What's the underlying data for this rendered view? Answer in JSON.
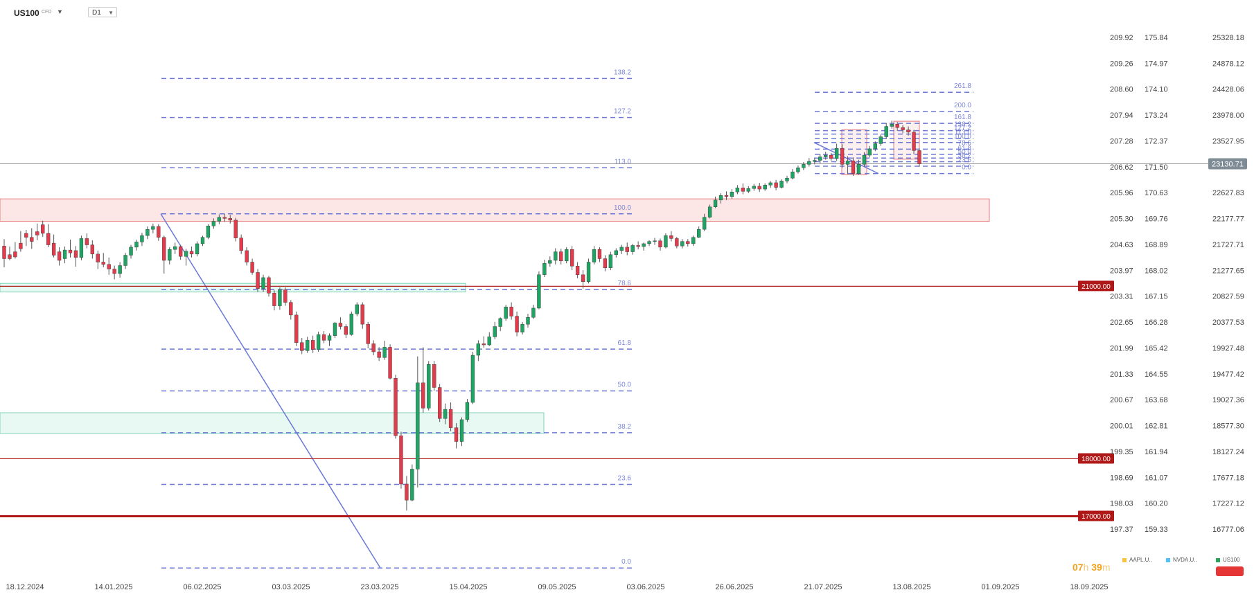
{
  "header": {
    "symbol": "US100",
    "symbol_sub": "CFD",
    "timeframe": "D1"
  },
  "timer": {
    "hours": "07",
    "h_unit": "h",
    "minutes": "39",
    "m_unit": "m"
  },
  "legend": [
    {
      "label": "AAPL.U..",
      "color": "#f5c542"
    },
    {
      "label": "NVDA.U..",
      "color": "#4fc3f7"
    },
    {
      "label": "US100",
      "color": "#26a65b"
    }
  ],
  "chart_data": {
    "type": "candlestick",
    "symbol": "US100",
    "timeframe": "D1",
    "current_price": "23130.71",
    "x_labels": [
      "18.12.2024",
      "14.01.2025",
      "06.02.2025",
      "03.03.2025",
      "23.03.2025",
      "15.04.2025",
      "09.05.2025",
      "03.06.2025",
      "26.06.2025",
      "21.07.2025",
      "13.08.2025",
      "01.09.2025",
      "18.09.2025"
    ],
    "axis_price": [
      "25328.18",
      "24878.12",
      "24428.06",
      "23978.00",
      "23527.95",
      "23130.71",
      "22627.83",
      "22177.77",
      "21727.71",
      "21277.65",
      "20827.59",
      "20377.53",
      "19927.48",
      "19477.42",
      "19027.36",
      "18577.30",
      "18127.24",
      "17677.18",
      "17227.12",
      "16777.06"
    ],
    "axis_nvda": [
      "175.84",
      "174.97",
      "174.10",
      "173.24",
      "172.37",
      "171.50",
      "170.63",
      "169.76",
      "168.89",
      "168.02",
      "167.15",
      "166.28",
      "165.42",
      "164.55",
      "163.68",
      "162.81",
      "161.94",
      "161.07",
      "160.20",
      "159.33"
    ],
    "axis_aapl": [
      "209.92",
      "209.26",
      "208.60",
      "207.94",
      "207.28",
      "206.62",
      "205.96",
      "205.30",
      "204.63",
      "203.97",
      "203.31",
      "202.65",
      "201.99",
      "201.33",
      "200.67",
      "200.01",
      "199.35",
      "198.69",
      "198.03",
      "197.37"
    ],
    "price_range": [
      16777.06,
      25328.18
    ],
    "horizontal_levels": [
      {
        "price": 21000,
        "label": "21000.00",
        "weight": "thin"
      },
      {
        "price": 18000,
        "label": "18000.00",
        "weight": "thin"
      },
      {
        "price": 17000,
        "label": "17000.00",
        "weight": "thick"
      }
    ],
    "fibonacci_main": {
      "low": 16100,
      "high": 22260,
      "levels": [
        "0.0",
        "23.6",
        "38.2",
        "50.0",
        "61.8",
        "78.6",
        "100.0",
        "113.0",
        "127.2",
        "138.2"
      ]
    },
    "fibonacci_small": {
      "low": 22960,
      "high": 23500,
      "levels": [
        "0.0",
        "23.6",
        "38.2",
        "50.0",
        "61.8",
        "78.6",
        "100.0",
        "113.0",
        "127.2",
        "138.2",
        "161.8",
        "200.0",
        "261.8"
      ]
    },
    "zones": [
      {
        "type": "resistance",
        "from": 22130,
        "to": 22520
      },
      {
        "type": "support",
        "from": 20900,
        "to": 21050
      },
      {
        "type": "support",
        "from": 18440,
        "to": 18800
      }
    ],
    "candles": [
      [
        21700,
        21820,
        21480,
        21330
      ],
      [
        21550,
        21690,
        21480,
        21450
      ],
      [
        21600,
        21770,
        21510,
        21480
      ],
      [
        21750,
        21960,
        21650,
        21600
      ],
      [
        21920,
        21980,
        21850,
        21700
      ],
      [
        21850,
        22010,
        21780,
        21650
      ],
      [
        21950,
        22090,
        21890,
        21800
      ],
      [
        22070,
        22140,
        21920,
        21860
      ],
      [
        21920,
        22080,
        21720,
        21680
      ],
      [
        21750,
        21900,
        21540,
        21500
      ],
      [
        21600,
        21680,
        21450,
        21360
      ],
      [
        21480,
        21690,
        21630,
        21400
      ],
      [
        21630,
        21810,
        21580,
        21500
      ],
      [
        21620,
        21700,
        21500,
        21340
      ],
      [
        21500,
        21880,
        21830,
        21450
      ],
      [
        21830,
        21920,
        21720,
        21660
      ],
      [
        21720,
        21800,
        21560,
        21480
      ],
      [
        21560,
        21620,
        21420,
        21300
      ],
      [
        21420,
        21580,
        21380,
        21330
      ],
      [
        21380,
        21500,
        21300,
        21200
      ],
      [
        21300,
        21360,
        21220,
        21120
      ],
      [
        21220,
        21420,
        21360,
        21150
      ],
      [
        21360,
        21580,
        21540,
        21300
      ],
      [
        21540,
        21720,
        21680,
        21480
      ],
      [
        21680,
        21810,
        21770,
        21620
      ],
      [
        21770,
        21930,
        21880,
        21700
      ],
      [
        21880,
        22040,
        21990,
        21820
      ],
      [
        21990,
        22090,
        22040,
        21920
      ],
      [
        22040,
        22080,
        21850,
        21790
      ],
      [
        21850,
        21880,
        21450,
        21220
      ],
      [
        21450,
        21680,
        21640,
        21380
      ],
      [
        21640,
        21760,
        21690,
        21560
      ],
      [
        21690,
        21720,
        21520,
        21460
      ],
      [
        21520,
        21650,
        21610,
        21360
      ],
      [
        21610,
        21690,
        21560,
        21500
      ],
      [
        21560,
        21780,
        21740,
        21520
      ],
      [
        21740,
        21880,
        21850,
        21700
      ],
      [
        21850,
        22080,
        22050,
        21820
      ],
      [
        22050,
        22180,
        22130,
        22000
      ],
      [
        22130,
        22250,
        22200,
        22080
      ],
      [
        22200,
        22260,
        22180,
        22120
      ],
      [
        22180,
        22240,
        22150,
        22090
      ],
      [
        22150,
        22190,
        21840,
        21780
      ],
      [
        21840,
        21900,
        21620,
        21560
      ],
      [
        21620,
        21680,
        21420,
        21360
      ],
      [
        21420,
        21480,
        21240,
        21200
      ],
      [
        21240,
        21300,
        20960,
        20900
      ],
      [
        20960,
        21200,
        21150,
        20900
      ],
      [
        21150,
        21180,
        20880,
        20820
      ],
      [
        20880,
        20930,
        20660,
        20580
      ],
      [
        20660,
        20980,
        20940,
        20590
      ],
      [
        20940,
        20980,
        20720,
        20660
      ],
      [
        20720,
        20760,
        20500,
        20420
      ],
      [
        20500,
        20560,
        20020,
        19960
      ],
      [
        20020,
        20100,
        19880,
        19820
      ],
      [
        19880,
        20120,
        20060,
        19840
      ],
      [
        20060,
        20140,
        19900,
        19840
      ],
      [
        19900,
        20210,
        20160,
        19860
      ],
      [
        20160,
        20220,
        20060,
        20010
      ],
      [
        20060,
        20180,
        20140,
        19960
      ],
      [
        20140,
        20380,
        20360,
        20100
      ],
      [
        20360,
        20460,
        20300,
        20250
      ],
      [
        20300,
        20340,
        20160,
        20100
      ],
      [
        20160,
        20560,
        20520,
        20140
      ],
      [
        20520,
        20720,
        20680,
        20480
      ],
      [
        20680,
        20720,
        20340,
        20260
      ],
      [
        20340,
        20380,
        20000,
        19920
      ],
      [
        20000,
        20060,
        19860,
        19800
      ],
      [
        19860,
        19940,
        19760,
        19700
      ],
      [
        19760,
        20050,
        19940,
        19720
      ],
      [
        19940,
        19990,
        19400,
        19380
      ],
      [
        19400,
        19460,
        18400,
        18350
      ],
      [
        18400,
        18470,
        17560,
        17480
      ],
      [
        17560,
        17700,
        17280,
        17100
      ],
      [
        17280,
        17900,
        17820,
        17260
      ],
      [
        17820,
        19780,
        19320,
        17500
      ],
      [
        19320,
        19940,
        18880,
        18800
      ],
      [
        18880,
        19700,
        19640,
        18840
      ],
      [
        19640,
        19700,
        19240,
        19180
      ],
      [
        19240,
        19300,
        18700,
        18640
      ],
      [
        18700,
        18960,
        18860,
        18600
      ],
      [
        18860,
        18980,
        18540,
        18480
      ],
      [
        18540,
        18620,
        18300,
        18180
      ],
      [
        18300,
        18720,
        18680,
        18220
      ],
      [
        18680,
        19040,
        18980,
        18640
      ],
      [
        18980,
        19860,
        19800,
        18950
      ],
      [
        19800,
        20060,
        20000,
        19700
      ],
      [
        20000,
        20130,
        19980,
        19930
      ],
      [
        19980,
        20200,
        20120,
        19960
      ],
      [
        20120,
        20380,
        20300,
        20080
      ],
      [
        20300,
        20460,
        20440,
        20220
      ],
      [
        20440,
        20680,
        20640,
        20400
      ],
      [
        20640,
        20720,
        20480,
        20420
      ],
      [
        20480,
        20560,
        20200,
        20130
      ],
      [
        20200,
        20380,
        20340,
        20160
      ],
      [
        20340,
        20520,
        20460,
        20280
      ],
      [
        20460,
        20680,
        20620,
        20430
      ],
      [
        20620,
        21260,
        21200,
        20600
      ],
      [
        21200,
        21460,
        21400,
        21160
      ],
      [
        21400,
        21520,
        21450,
        21340
      ],
      [
        21450,
        21660,
        21600,
        21380
      ],
      [
        21600,
        21650,
        21440,
        21380
      ],
      [
        21440,
        21680,
        21640,
        21400
      ],
      [
        21640,
        21700,
        21350,
        21280
      ],
      [
        21350,
        21420,
        21200,
        21140
      ],
      [
        21200,
        21280,
        21080,
        20960
      ],
      [
        21080,
        21480,
        21420,
        21050
      ],
      [
        21420,
        21700,
        21640,
        21380
      ],
      [
        21640,
        21680,
        21480,
        21420
      ],
      [
        21480,
        21540,
        21320,
        21260
      ],
      [
        21320,
        21600,
        21550,
        21280
      ],
      [
        21550,
        21660,
        21620,
        21500
      ],
      [
        21620,
        21720,
        21680,
        21560
      ],
      [
        21680,
        21760,
        21600,
        21540
      ],
      [
        21600,
        21740,
        21710,
        21550
      ],
      [
        21710,
        21780,
        21690,
        21640
      ],
      [
        21690,
        21760,
        21740,
        21620
      ],
      [
        21740,
        21800,
        21780,
        21700
      ],
      [
        21780,
        21840,
        21790,
        21720
      ],
      [
        21790,
        21830,
        21680,
        21620
      ],
      [
        21680,
        21920,
        21880,
        21660
      ],
      [
        21880,
        21960,
        21830,
        21780
      ],
      [
        21830,
        21860,
        21700,
        21660
      ],
      [
        21700,
        21820,
        21780,
        21660
      ],
      [
        21780,
        21820,
        21740,
        21690
      ],
      [
        21740,
        21880,
        21850,
        21700
      ],
      [
        21850,
        22040,
        21990,
        21840
      ],
      [
        21990,
        22260,
        22200,
        21960
      ],
      [
        22200,
        22420,
        22380,
        22180
      ],
      [
        22380,
        22560,
        22500,
        22360
      ],
      [
        22500,
        22620,
        22580,
        22440
      ],
      [
        22580,
        22650,
        22560,
        22500
      ],
      [
        22560,
        22690,
        22640,
        22520
      ],
      [
        22640,
        22760,
        22710,
        22600
      ],
      [
        22710,
        22790,
        22650,
        22600
      ],
      [
        22650,
        22740,
        22700,
        22620
      ],
      [
        22700,
        22780,
        22740,
        22660
      ],
      [
        22740,
        22800,
        22690,
        22640
      ],
      [
        22690,
        22790,
        22760,
        22660
      ],
      [
        22760,
        22830,
        22800,
        22710
      ],
      [
        22800,
        22850,
        22720,
        22670
      ],
      [
        22720,
        22860,
        22830,
        22700
      ],
      [
        22830,
        22920,
        22880,
        22790
      ],
      [
        22880,
        23040,
        22990,
        22860
      ],
      [
        22990,
        23100,
        23060,
        22960
      ],
      [
        23060,
        23160,
        23120,
        23020
      ],
      [
        23120,
        23230,
        23170,
        23080
      ],
      [
        23170,
        23240,
        23190,
        23120
      ],
      [
        23190,
        23300,
        23250,
        23140
      ],
      [
        23250,
        23340,
        23280,
        23200
      ],
      [
        23280,
        23320,
        23220,
        23180
      ],
      [
        23220,
        23480,
        23400,
        23180
      ],
      [
        23400,
        23470,
        23120,
        23060
      ],
      [
        23120,
        23260,
        23180,
        22950
      ],
      [
        23180,
        23240,
        22960,
        22920
      ],
      [
        22960,
        23200,
        23120,
        22940
      ],
      [
        23120,
        23330,
        23280,
        23080
      ],
      [
        23280,
        23440,
        23390,
        23240
      ],
      [
        23390,
        23520,
        23480,
        23350
      ],
      [
        23480,
        23640,
        23600,
        23440
      ],
      [
        23600,
        23840,
        23780,
        23560
      ],
      [
        23780,
        23880,
        23820,
        23740
      ],
      [
        23820,
        23860,
        23760,
        23700
      ],
      [
        23760,
        23800,
        23720,
        23660
      ],
      [
        23720,
        23780,
        23680,
        23620
      ],
      [
        23680,
        23720,
        23360,
        23300
      ],
      [
        23360,
        23400,
        23130,
        23080
      ]
    ]
  }
}
